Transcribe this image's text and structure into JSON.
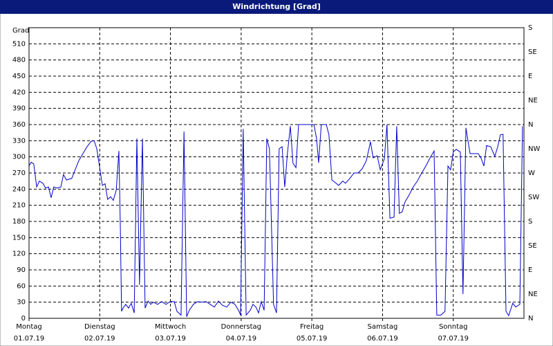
{
  "chart_data": {
    "type": "line",
    "title": "Windrichtung [Grad]",
    "y_label": "Grad",
    "color": "#0000c8",
    "grid": true,
    "x": [
      0,
      0.7,
      1.6,
      2.6,
      3.5,
      4.7,
      5.6,
      6.6,
      7.5,
      8.4,
      9.4,
      10.8,
      11.7,
      12.7,
      14.5,
      15.5,
      16.9,
      18.3,
      19.7,
      21.1,
      22.1,
      23,
      23.9,
      24.9,
      25.8,
      26.7,
      27.7,
      28.6,
      29.6,
      30.5,
      31,
      31.4,
      31.9,
      32.8,
      33.8,
      34.7,
      35.7,
      36.6,
      37.5,
      38.5,
      39.4,
      40.4,
      41.3,
      42.2,
      43.6,
      45,
      46.5,
      47.9,
      49.3,
      50.2,
      51.6,
      52.6,
      53.5,
      54.4,
      55.8,
      57.2,
      58.7,
      60.1,
      61.5,
      62.9,
      64.3,
      65.7,
      67.1,
      68.5,
      69.9,
      71.3,
      71.8,
      72.7,
      73.7,
      75.1,
      76,
      77,
      77.9,
      78.8,
      79.8,
      80.7,
      81.6,
      83,
      84,
      84.9,
      85.9,
      86.8,
      87.7,
      88.7,
      89.6,
      90.6,
      91.5,
      93.4,
      95.2,
      96.7,
      97.6,
      98.3,
      99.2,
      100.9,
      101.8,
      102.8,
      104.2,
      105.1,
      106.5,
      107.4,
      108.9,
      110.3,
      111.7,
      113.1,
      114.5,
      115.9,
      116.8,
      118.2,
      119.2,
      120.6,
      121.5,
      122.5,
      123.9,
      124.8,
      125.7,
      126.7,
      127.6,
      129,
      130.4,
      131.8,
      133.3,
      134.7,
      136.1,
      137.5,
      138.4,
      139.8,
      141.2,
      142.2,
      143.1,
      144,
      145,
      146.4,
      147.3,
      148.3,
      149.7,
      151.1,
      152.5,
      153.4,
      154.4,
      155.3,
      156.7,
      158.1,
      159.1,
      160,
      160.9,
      161.9,
      162.8,
      164.2,
      165.2,
      166.6,
      167.5
    ],
    "values": [
      283,
      290,
      287,
      244,
      255,
      251,
      242,
      244,
      224,
      244,
      242,
      244,
      267,
      257,
      260,
      274,
      293,
      306,
      319,
      329,
      330,
      315,
      283,
      247,
      250,
      221,
      226,
      219,
      238,
      311,
      167,
      13,
      19,
      26,
      19,
      28,
      10,
      334,
      62,
      334,
      19,
      32,
      26,
      30,
      26,
      31,
      26,
      31,
      31,
      13,
      6,
      347,
      3,
      15,
      26,
      31,
      30,
      31,
      26,
      21,
      32,
      24,
      21,
      30,
      26,
      13,
      6,
      352,
      6,
      15,
      26,
      21,
      10,
      31,
      15,
      334,
      315,
      26,
      10,
      315,
      319,
      244,
      306,
      357,
      288,
      280,
      360,
      360,
      360,
      360,
      334,
      289,
      360,
      360,
      341,
      257,
      251,
      247,
      255,
      251,
      260,
      270,
      270,
      278,
      293,
      328,
      298,
      302,
      276,
      296,
      360,
      186,
      188,
      357,
      195,
      198,
      216,
      229,
      244,
      255,
      270,
      283,
      298,
      311,
      6,
      6,
      13,
      283,
      276,
      309,
      314,
      309,
      45,
      354,
      306,
      306,
      306,
      298,
      283,
      321,
      319,
      301,
      319,
      341,
      342,
      13,
      5,
      28,
      21,
      26,
      357
    ],
    "xlim": [
      0,
      168
    ],
    "xticks": [
      {
        "value": 0,
        "label": "Montag"
      },
      {
        "value": 24,
        "label": "Dienstag"
      },
      {
        "value": 48,
        "label": "Mittwoch"
      },
      {
        "value": 72,
        "label": "Donnerstag"
      },
      {
        "value": 96,
        "label": "Freitag"
      },
      {
        "value": 120,
        "label": "Samstag"
      },
      {
        "value": 144,
        "label": "Sonntag"
      }
    ],
    "xtick_dates": [
      "01.07.19",
      "02.07.19",
      "03.07.19",
      "04.07.19",
      "05.07.19",
      "06.07.19",
      "07.07.19"
    ],
    "ylim": [
      0,
      540
    ],
    "yticks": [
      0,
      30,
      60,
      90,
      120,
      150,
      180,
      210,
      240,
      270,
      300,
      330,
      360,
      390,
      420,
      450,
      480,
      510
    ],
    "y2lim": [
      0,
      540
    ],
    "y2ticks": [
      {
        "value": 0,
        "label": "N"
      },
      {
        "value": 45,
        "label": "NE"
      },
      {
        "value": 90,
        "label": "E"
      },
      {
        "value": 135,
        "label": "SE"
      },
      {
        "value": 180,
        "label": "S"
      },
      {
        "value": 225,
        "label": "SW"
      },
      {
        "value": 270,
        "label": "W"
      },
      {
        "value": 315,
        "label": "NW"
      },
      {
        "value": 360,
        "label": "N"
      },
      {
        "value": 405,
        "label": "NE"
      },
      {
        "value": 450,
        "label": "E"
      },
      {
        "value": 495,
        "label": "SE"
      },
      {
        "value": 540,
        "label": "S"
      }
    ]
  }
}
